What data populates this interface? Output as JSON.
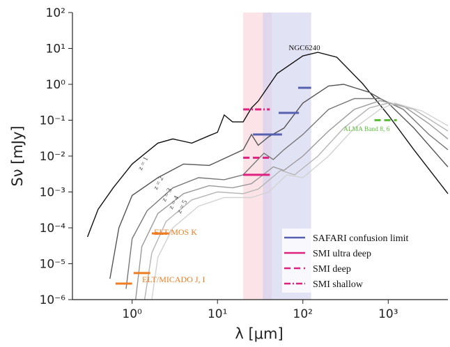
{
  "chart_data": {
    "type": "line",
    "log_x": true,
    "log_y": true,
    "xlabel": "λ [μm]",
    "ylabel": "Sν [mJy]",
    "xlim": [
      0.2,
      5000
    ],
    "ylim": [
      1e-06,
      100
    ],
    "xticks": [
      {
        "value": 1,
        "label": "10⁰"
      },
      {
        "value": 10,
        "label": "10¹"
      },
      {
        "value": 100,
        "label": "10²"
      },
      {
        "value": 1000,
        "label": "10³"
      }
    ],
    "yticks": [
      {
        "value": 1e-06,
        "label": "10⁻⁶"
      },
      {
        "value": 1e-05,
        "label": "10⁻⁵"
      },
      {
        "value": 0.0001,
        "label": "10⁻⁴"
      },
      {
        "value": 0.001,
        "label": "10⁻³"
      },
      {
        "value": 0.01,
        "label": "10⁻²"
      },
      {
        "value": 0.1,
        "label": "10⁻¹"
      },
      {
        "value": 1,
        "label": "10⁰"
      },
      {
        "value": 10,
        "label": "10¹"
      },
      {
        "value": 100,
        "label": "10²"
      }
    ],
    "bands": [
      {
        "color": "#f9d0d8",
        "x": [
          20,
          43
        ]
      },
      {
        "color": "#cfcfee",
        "x": [
          34,
          125
        ]
      }
    ],
    "series": [
      {
        "name": "NGC6240",
        "color": "#111111",
        "x": [
          0.3,
          0.4,
          0.6,
          1,
          2,
          3,
          5,
          8,
          10,
          12,
          15,
          20,
          25,
          30,
          50,
          100,
          150,
          250,
          500,
          1000,
          2000,
          5000
        ],
        "values": [
          5.6e-05,
          0.00033,
          0.0013,
          0.006,
          0.023,
          0.03,
          0.023,
          0.037,
          0.046,
          0.14,
          0.09,
          0.09,
          0.22,
          0.34,
          2,
          6.2,
          7.8,
          5.7,
          1.05,
          0.14,
          0.015,
          0.0009
        ]
      },
      {
        "name": "z = 1",
        "color": "#555555",
        "x": [
          0.55,
          0.7,
          1,
          2,
          4,
          8,
          10,
          20,
          25,
          30,
          40,
          60,
          100,
          200,
          300,
          600,
          1000,
          2000,
          5000
        ],
        "values": [
          3.8e-06,
          0.0001,
          0.0008,
          0.0025,
          0.006,
          0.0055,
          0.007,
          0.015,
          0.04,
          0.02,
          0.035,
          0.06,
          0.3,
          0.9,
          1.0,
          0.6,
          0.3,
          0.06,
          0.005
        ]
      },
      {
        "name": "z = 2",
        "color": "#777777",
        "x": [
          0.85,
          1,
          1.5,
          3,
          6,
          12,
          20,
          35,
          45,
          60,
          100,
          200,
          400,
          800,
          1500,
          3000,
          5000
        ],
        "values": [
          2e-06,
          5e-05,
          0.0003,
          0.0013,
          0.0025,
          0.0022,
          0.003,
          0.012,
          0.008,
          0.015,
          0.04,
          0.2,
          0.4,
          0.4,
          0.2,
          0.04,
          0.015
        ]
      },
      {
        "name": "z = 3",
        "color": "#999999",
        "x": [
          1.1,
          1.3,
          2,
          4,
          8,
          15,
          25,
          45,
          60,
          100,
          200,
          400,
          800,
          1500,
          3000,
          5000
        ],
        "values": [
          1e-06,
          3e-05,
          0.00025,
          0.0009,
          0.0015,
          0.0013,
          0.0017,
          0.005,
          0.004,
          0.01,
          0.05,
          0.2,
          0.35,
          0.25,
          0.08,
          0.03
        ]
      },
      {
        "name": "z = 4",
        "color": "#b4b4b4",
        "x": [
          1.4,
          1.7,
          2.5,
          5,
          10,
          20,
          30,
          55,
          80,
          150,
          300,
          600,
          1000,
          2000,
          5000
        ],
        "values": [
          1e-06,
          2e-05,
          0.00015,
          0.0006,
          0.001,
          0.0009,
          0.0012,
          0.004,
          0.003,
          0.01,
          0.06,
          0.22,
          0.3,
          0.2,
          0.05
        ]
      },
      {
        "name": "z = 5",
        "color": "#d2d2d2",
        "x": [
          1.7,
          2,
          3,
          6,
          12,
          25,
          40,
          65,
          100,
          200,
          400,
          800,
          1200,
          2500,
          5000
        ],
        "values": [
          1e-06,
          1.5e-05,
          0.0001,
          0.0004,
          0.0007,
          0.0007,
          0.001,
          0.003,
          0.0025,
          0.01,
          0.06,
          0.2,
          0.3,
          0.18,
          0.07
        ]
      }
    ],
    "limits": [
      {
        "name": "SAFARI confusion limit",
        "color": "#5560b0",
        "dash": "solid",
        "segments": [
          {
            "x": [
              88,
              125
            ],
            "value": 0.8
          },
          {
            "x": [
              52,
              90
            ],
            "value": 0.16
          },
          {
            "x": [
              26,
              57
            ],
            "value": 0.04
          }
        ]
      },
      {
        "name": "SMI ultra deep",
        "color": "#e0207f",
        "dash": "solid",
        "segments": [
          {
            "x": [
              20,
              41
            ],
            "value": 0.003
          }
        ]
      },
      {
        "name": "SMI deep",
        "color": "#e0207f",
        "dash": "dashed",
        "segments": [
          {
            "x": [
              20,
              41
            ],
            "value": 0.009
          }
        ]
      },
      {
        "name": "SMI shallow",
        "color": "#e0207f",
        "dash": "dashdot",
        "segments": [
          {
            "x": [
              20,
              41
            ],
            "value": 0.2
          }
        ]
      }
    ],
    "instruments": [
      {
        "name": "ELT/MOS K",
        "color": "#ee7d22",
        "dash": "solid",
        "segments": [
          {
            "x": [
              1.7,
              2.7
            ],
            "value": 7e-05
          }
        ]
      },
      {
        "name": "ELT/MICADO J, I",
        "color": "#ee7d22",
        "dash": "solid",
        "segments": [
          {
            "x": [
              1.04,
              1.63
            ],
            "value": 5.5e-06
          },
          {
            "x": [
              0.64,
              1.0
            ],
            "value": 2.8e-06
          }
        ]
      },
      {
        "name": "ALMA Band 8, 6",
        "color": "#5cbf3a",
        "dash": "dashed",
        "segments": [
          {
            "x": [
              690,
              1260
            ],
            "value": 0.1
          }
        ]
      }
    ]
  }
}
